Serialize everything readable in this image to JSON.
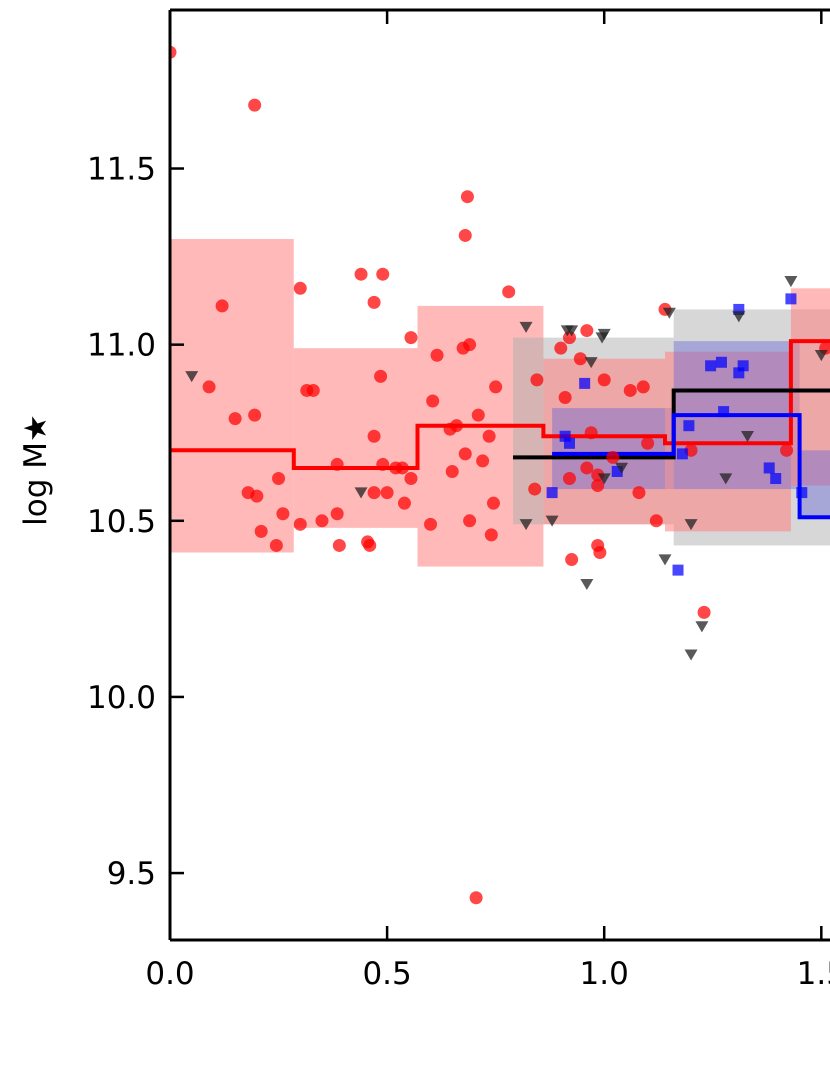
{
  "chart_data": {
    "type": "scatter",
    "title": "",
    "xlabel": "",
    "ylabel": "log M★",
    "xlim": [
      0.0,
      1.52
    ],
    "ylim": [
      9.31,
      11.95
    ],
    "xticks": [
      0.0,
      0.5,
      1.0,
      1.5
    ],
    "xtick_labels": [
      "0.0",
      "0.5",
      "1.0",
      "1.5"
    ],
    "yticks": [
      9.5,
      10.0,
      10.5,
      11.0,
      11.5
    ],
    "ytick_labels": [
      "9.5",
      "10.0",
      "10.5",
      "11.0",
      "11.5"
    ],
    "grid": false,
    "colors": {
      "red": "#ff0000",
      "blue": "#0000ff",
      "black": "#000000",
      "red_band": "#ff8080",
      "blue_band": "#6b6bd6",
      "gray_band": "#b0b0b0"
    },
    "bands": [
      {
        "series": "red",
        "x0": 0.0,
        "x1": 0.285,
        "lo": 10.41,
        "hi": 11.3
      },
      {
        "series": "red",
        "x0": 0.285,
        "x1": 0.57,
        "lo": 10.48,
        "hi": 10.99
      },
      {
        "series": "red",
        "x0": 0.57,
        "x1": 0.86,
        "lo": 10.37,
        "hi": 11.11
      },
      {
        "series": "gray",
        "x0": 0.79,
        "x1": 1.16,
        "lo": 10.49,
        "hi": 11.02
      },
      {
        "series": "red",
        "x0": 0.86,
        "x1": 1.14,
        "lo": 10.49,
        "hi": 10.96
      },
      {
        "series": "blue",
        "x0": 0.88,
        "x1": 1.16,
        "lo": 10.59,
        "hi": 10.82
      },
      {
        "series": "gray",
        "x0": 1.16,
        "x1": 1.52,
        "lo": 10.43,
        "hi": 11.1
      },
      {
        "series": "red",
        "x0": 1.14,
        "x1": 1.43,
        "lo": 10.47,
        "hi": 10.98
      },
      {
        "series": "blue",
        "x0": 1.16,
        "x1": 1.45,
        "lo": 10.59,
        "hi": 11.01
      },
      {
        "series": "red",
        "x0": 1.43,
        "x1": 1.52,
        "lo": 10.6,
        "hi": 11.16
      },
      {
        "series": "blue",
        "x0": 1.45,
        "x1": 1.52,
        "lo": 10.51,
        "hi": 10.7
      }
    ],
    "steps": [
      {
        "series": "red",
        "x": [
          0.0,
          0.285,
          0.285,
          0.57,
          0.57,
          0.86,
          0.86,
          1.14,
          1.14,
          1.43,
          1.43,
          1.52
        ],
        "y": [
          10.7,
          10.7,
          10.65,
          10.65,
          10.77,
          10.77,
          10.74,
          10.74,
          10.72,
          10.72,
          11.01,
          11.01
        ]
      },
      {
        "series": "black",
        "x": [
          0.79,
          1.16,
          1.16,
          1.52
        ],
        "y": [
          10.68,
          10.68,
          10.87,
          10.87
        ]
      },
      {
        "series": "blue",
        "x": [
          0.88,
          1.16,
          1.16,
          1.45,
          1.45,
          1.52
        ],
        "y": [
          10.69,
          10.69,
          10.8,
          10.8,
          10.51,
          10.51
        ]
      }
    ],
    "red_points": [
      [
        0.0,
        11.83
      ],
      [
        0.195,
        11.68
      ],
      [
        0.685,
        11.42
      ],
      [
        0.68,
        11.31
      ],
      [
        0.12,
        11.11
      ],
      [
        0.3,
        11.16
      ],
      [
        0.78,
        11.15
      ],
      [
        0.44,
        11.2
      ],
      [
        0.49,
        11.2
      ],
      [
        0.47,
        11.12
      ],
      [
        0.555,
        11.02
      ],
      [
        0.69,
        11.0
      ],
      [
        0.675,
        10.99
      ],
      [
        0.615,
        10.97
      ],
      [
        0.09,
        10.88
      ],
      [
        0.315,
        10.87
      ],
      [
        0.33,
        10.87
      ],
      [
        0.485,
        10.91
      ],
      [
        0.75,
        10.88
      ],
      [
        0.605,
        10.84
      ],
      [
        0.15,
        10.79
      ],
      [
        0.195,
        10.8
      ],
      [
        0.71,
        10.8
      ],
      [
        0.645,
        10.76
      ],
      [
        0.66,
        10.77
      ],
      [
        0.735,
        10.74
      ],
      [
        0.47,
        10.74
      ],
      [
        0.68,
        10.69
      ],
      [
        0.72,
        10.67
      ],
      [
        0.65,
        10.64
      ],
      [
        0.49,
        10.66
      ],
      [
        0.52,
        10.65
      ],
      [
        0.535,
        10.65
      ],
      [
        0.385,
        10.66
      ],
      [
        0.555,
        10.62
      ],
      [
        0.25,
        10.62
      ],
      [
        0.18,
        10.58
      ],
      [
        0.2,
        10.57
      ],
      [
        0.47,
        10.58
      ],
      [
        0.5,
        10.58
      ],
      [
        0.54,
        10.55
      ],
      [
        0.745,
        10.55
      ],
      [
        0.26,
        10.52
      ],
      [
        0.3,
        10.49
      ],
      [
        0.35,
        10.5
      ],
      [
        0.385,
        10.52
      ],
      [
        0.21,
        10.47
      ],
      [
        0.69,
        10.5
      ],
      [
        0.6,
        10.49
      ],
      [
        0.74,
        10.46
      ],
      [
        0.245,
        10.43
      ],
      [
        0.39,
        10.43
      ],
      [
        0.455,
        10.44
      ],
      [
        0.46,
        10.43
      ],
      [
        0.705,
        9.43
      ],
      [
        0.92,
        11.02
      ],
      [
        0.9,
        10.99
      ],
      [
        0.96,
        11.04
      ],
      [
        0.945,
        10.96
      ],
      [
        1.0,
        10.9
      ],
      [
        0.845,
        10.9
      ],
      [
        0.91,
        10.85
      ],
      [
        1.06,
        10.87
      ],
      [
        1.09,
        10.88
      ],
      [
        0.97,
        10.75
      ],
      [
        1.1,
        10.72
      ],
      [
        1.02,
        10.68
      ],
      [
        0.96,
        10.65
      ],
      [
        0.985,
        10.63
      ],
      [
        1.08,
        10.58
      ],
      [
        0.985,
        10.6
      ],
      [
        0.84,
        10.59
      ],
      [
        0.92,
        10.62
      ],
      [
        1.12,
        10.5
      ],
      [
        0.985,
        10.43
      ],
      [
        0.99,
        10.41
      ],
      [
        0.925,
        10.39
      ],
      [
        1.14,
        11.1
      ],
      [
        1.23,
        10.24
      ],
      [
        1.2,
        10.7
      ],
      [
        1.42,
        10.7
      ],
      [
        1.51,
        10.99
      ]
    ],
    "blue_points": [
      [
        0.91,
        10.74
      ],
      [
        0.92,
        10.72
      ],
      [
        0.88,
        10.58
      ],
      [
        0.955,
        10.89
      ],
      [
        1.03,
        10.64
      ],
      [
        1.18,
        10.69
      ],
      [
        1.195,
        10.77
      ],
      [
        1.245,
        10.94
      ],
      [
        1.27,
        10.95
      ],
      [
        1.31,
        10.92
      ],
      [
        1.32,
        10.94
      ],
      [
        1.275,
        10.81
      ],
      [
        1.38,
        10.65
      ],
      [
        1.395,
        10.62
      ],
      [
        1.31,
        11.1
      ],
      [
        1.43,
        11.13
      ],
      [
        1.17,
        10.36
      ],
      [
        1.455,
        10.58
      ]
    ],
    "triangle_points": [
      [
        0.05,
        10.91
      ],
      [
        0.44,
        10.58
      ],
      [
        0.82,
        11.05
      ],
      [
        0.82,
        10.49
      ],
      [
        0.88,
        10.5
      ],
      [
        0.915,
        11.04
      ],
      [
        0.925,
        11.04
      ],
      [
        1.0,
        11.03
      ],
      [
        0.995,
        11.02
      ],
      [
        0.97,
        10.95
      ],
      [
        1.0,
        10.62
      ],
      [
        1.04,
        10.65
      ],
      [
        0.96,
        10.32
      ],
      [
        1.14,
        10.39
      ],
      [
        1.15,
        11.09
      ],
      [
        1.2,
        10.49
      ],
      [
        1.225,
        10.2
      ],
      [
        1.2,
        10.12
      ],
      [
        1.28,
        10.62
      ],
      [
        1.31,
        11.08
      ],
      [
        1.33,
        10.74
      ],
      [
        1.43,
        11.18
      ],
      [
        1.5,
        10.97
      ]
    ]
  }
}
